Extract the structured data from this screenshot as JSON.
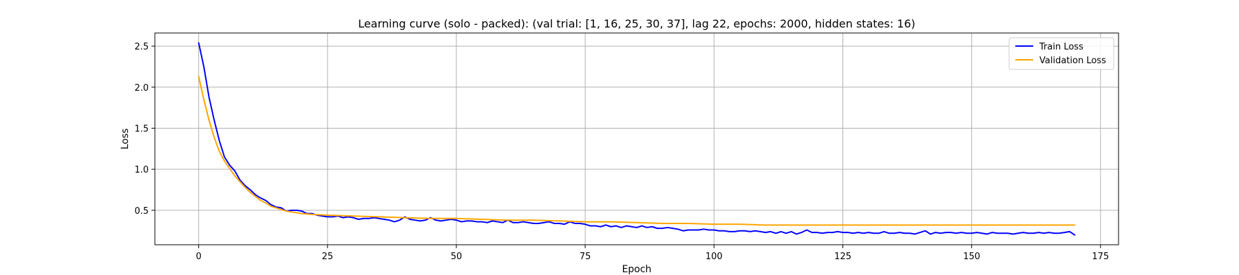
{
  "chart_data": {
    "type": "line",
    "title": "Learning curve (solo - packed): (val trial: [1, 16, 25, 30, 37], lag 22, epochs: 2000, hidden states: 16)",
    "xlabel": "Epoch",
    "ylabel": "Loss",
    "xlim": [
      -8.5,
      178.5
    ],
    "ylim": [
      0.08,
      2.66
    ],
    "x_ticks": [
      0,
      25,
      50,
      75,
      100,
      125,
      150,
      175
    ],
    "y_ticks": [
      0.5,
      1.0,
      1.5,
      2.0,
      2.5
    ],
    "x_tick_labels": [
      "0",
      "25",
      "50",
      "75",
      "100",
      "125",
      "150",
      "175"
    ],
    "y_tick_labels": [
      "0.5",
      "1.0",
      "1.5",
      "2.0",
      "2.5"
    ],
    "grid": true,
    "legend_position": "top-right",
    "series": [
      {
        "name": "Train Loss",
        "color": "#0000ff",
        "points": [
          [
            0,
            2.54
          ],
          [
            1,
            2.25
          ],
          [
            2,
            1.88
          ],
          [
            3,
            1.6
          ],
          [
            4,
            1.35
          ],
          [
            5,
            1.15
          ],
          [
            6,
            1.05
          ],
          [
            7,
            0.98
          ],
          [
            8,
            0.87
          ],
          [
            9,
            0.8
          ],
          [
            10,
            0.75
          ],
          [
            11,
            0.69
          ],
          [
            12,
            0.65
          ],
          [
            13,
            0.62
          ],
          [
            14,
            0.57
          ],
          [
            15,
            0.54
          ],
          [
            16,
            0.53
          ],
          [
            17,
            0.49
          ],
          [
            18,
            0.5
          ],
          [
            19,
            0.5
          ],
          [
            20,
            0.49
          ],
          [
            21,
            0.46
          ],
          [
            22,
            0.46
          ],
          [
            23,
            0.44
          ],
          [
            24,
            0.43
          ],
          [
            25,
            0.42
          ],
          [
            26,
            0.42
          ],
          [
            27,
            0.43
          ],
          [
            28,
            0.41
          ],
          [
            29,
            0.42
          ],
          [
            30,
            0.41
          ],
          [
            31,
            0.39
          ],
          [
            32,
            0.4
          ],
          [
            33,
            0.4
          ],
          [
            34,
            0.41
          ],
          [
            35,
            0.4
          ],
          [
            36,
            0.39
          ],
          [
            37,
            0.38
          ],
          [
            38,
            0.36
          ],
          [
            39,
            0.38
          ],
          [
            40,
            0.42
          ],
          [
            41,
            0.39
          ],
          [
            42,
            0.38
          ],
          [
            43,
            0.37
          ],
          [
            44,
            0.38
          ],
          [
            45,
            0.41
          ],
          [
            46,
            0.38
          ],
          [
            47,
            0.37
          ],
          [
            48,
            0.38
          ],
          [
            49,
            0.39
          ],
          [
            50,
            0.38
          ],
          [
            51,
            0.36
          ],
          [
            52,
            0.37
          ],
          [
            53,
            0.37
          ],
          [
            54,
            0.36
          ],
          [
            55,
            0.36
          ],
          [
            56,
            0.35
          ],
          [
            57,
            0.37
          ],
          [
            58,
            0.36
          ],
          [
            59,
            0.35
          ],
          [
            60,
            0.38
          ],
          [
            61,
            0.35
          ],
          [
            62,
            0.35
          ],
          [
            63,
            0.36
          ],
          [
            64,
            0.35
          ],
          [
            65,
            0.34
          ],
          [
            66,
            0.34
          ],
          [
            67,
            0.35
          ],
          [
            68,
            0.36
          ],
          [
            69,
            0.34
          ],
          [
            70,
            0.34
          ],
          [
            71,
            0.33
          ],
          [
            72,
            0.36
          ],
          [
            73,
            0.34
          ],
          [
            74,
            0.34
          ],
          [
            75,
            0.33
          ],
          [
            76,
            0.31
          ],
          [
            77,
            0.31
          ],
          [
            78,
            0.3
          ],
          [
            79,
            0.32
          ],
          [
            80,
            0.3
          ],
          [
            81,
            0.31
          ],
          [
            82,
            0.29
          ],
          [
            83,
            0.31
          ],
          [
            84,
            0.3
          ],
          [
            85,
            0.29
          ],
          [
            86,
            0.31
          ],
          [
            87,
            0.29
          ],
          [
            88,
            0.3
          ],
          [
            89,
            0.28
          ],
          [
            90,
            0.28
          ],
          [
            91,
            0.29
          ],
          [
            92,
            0.28
          ],
          [
            93,
            0.27
          ],
          [
            94,
            0.25
          ],
          [
            95,
            0.26
          ],
          [
            96,
            0.26
          ],
          [
            97,
            0.26
          ],
          [
            98,
            0.27
          ],
          [
            99,
            0.26
          ],
          [
            100,
            0.26
          ],
          [
            101,
            0.25
          ],
          [
            102,
            0.25
          ],
          [
            103,
            0.24
          ],
          [
            104,
            0.24
          ],
          [
            105,
            0.25
          ],
          [
            106,
            0.25
          ],
          [
            107,
            0.24
          ],
          [
            108,
            0.25
          ],
          [
            109,
            0.24
          ],
          [
            110,
            0.23
          ],
          [
            111,
            0.24
          ],
          [
            112,
            0.22
          ],
          [
            113,
            0.24
          ],
          [
            114,
            0.22
          ],
          [
            115,
            0.24
          ],
          [
            116,
            0.21
          ],
          [
            117,
            0.23
          ],
          [
            118,
            0.26
          ],
          [
            119,
            0.23
          ],
          [
            120,
            0.23
          ],
          [
            121,
            0.22
          ],
          [
            122,
            0.23
          ],
          [
            123,
            0.23
          ],
          [
            124,
            0.24
          ],
          [
            125,
            0.23
          ],
          [
            126,
            0.23
          ],
          [
            127,
            0.22
          ],
          [
            128,
            0.23
          ],
          [
            129,
            0.22
          ],
          [
            130,
            0.23
          ],
          [
            131,
            0.22
          ],
          [
            132,
            0.22
          ],
          [
            133,
            0.24
          ],
          [
            134,
            0.22
          ],
          [
            135,
            0.22
          ],
          [
            136,
            0.23
          ],
          [
            137,
            0.22
          ],
          [
            138,
            0.22
          ],
          [
            139,
            0.21
          ],
          [
            140,
            0.23
          ],
          [
            141,
            0.25
          ],
          [
            142,
            0.21
          ],
          [
            143,
            0.23
          ],
          [
            144,
            0.22
          ],
          [
            145,
            0.23
          ],
          [
            146,
            0.23
          ],
          [
            147,
            0.22
          ],
          [
            148,
            0.23
          ],
          [
            149,
            0.22
          ],
          [
            150,
            0.22
          ],
          [
            151,
            0.23
          ],
          [
            152,
            0.22
          ],
          [
            153,
            0.21
          ],
          [
            154,
            0.23
          ],
          [
            155,
            0.22
          ],
          [
            156,
            0.22
          ],
          [
            157,
            0.22
          ],
          [
            158,
            0.21
          ],
          [
            159,
            0.22
          ],
          [
            160,
            0.23
          ],
          [
            161,
            0.22
          ],
          [
            162,
            0.22
          ],
          [
            163,
            0.23
          ],
          [
            164,
            0.22
          ],
          [
            165,
            0.23
          ],
          [
            166,
            0.22
          ],
          [
            167,
            0.22
          ],
          [
            168,
            0.23
          ],
          [
            169,
            0.24
          ],
          [
            170,
            0.2
          ]
        ]
      },
      {
        "name": "Validation Loss",
        "color": "#ffa500",
        "points": [
          [
            0,
            2.13
          ],
          [
            1,
            1.85
          ],
          [
            2,
            1.6
          ],
          [
            3,
            1.39
          ],
          [
            4,
            1.22
          ],
          [
            5,
            1.1
          ],
          [
            6,
            1.01
          ],
          [
            7,
            0.92
          ],
          [
            8,
            0.85
          ],
          [
            9,
            0.78
          ],
          [
            10,
            0.72
          ],
          [
            11,
            0.67
          ],
          [
            12,
            0.62
          ],
          [
            13,
            0.59
          ],
          [
            14,
            0.55
          ],
          [
            15,
            0.53
          ],
          [
            16,
            0.51
          ],
          [
            17,
            0.49
          ],
          [
            18,
            0.48
          ],
          [
            19,
            0.47
          ],
          [
            20,
            0.46
          ],
          [
            22,
            0.45
          ],
          [
            25,
            0.44
          ],
          [
            30,
            0.43
          ],
          [
            35,
            0.42
          ],
          [
            40,
            0.41
          ],
          [
            45,
            0.4
          ],
          [
            50,
            0.4
          ],
          [
            55,
            0.39
          ],
          [
            60,
            0.38
          ],
          [
            65,
            0.38
          ],
          [
            70,
            0.37
          ],
          [
            75,
            0.36
          ],
          [
            80,
            0.36
          ],
          [
            85,
            0.35
          ],
          [
            90,
            0.34
          ],
          [
            95,
            0.34
          ],
          [
            100,
            0.33
          ],
          [
            105,
            0.33
          ],
          [
            110,
            0.32
          ],
          [
            115,
            0.32
          ],
          [
            120,
            0.32
          ],
          [
            125,
            0.32
          ],
          [
            130,
            0.32
          ],
          [
            135,
            0.32
          ],
          [
            140,
            0.32
          ],
          [
            145,
            0.32
          ],
          [
            150,
            0.32
          ],
          [
            155,
            0.32
          ],
          [
            160,
            0.32
          ],
          [
            165,
            0.32
          ],
          [
            170,
            0.32
          ]
        ]
      }
    ]
  }
}
